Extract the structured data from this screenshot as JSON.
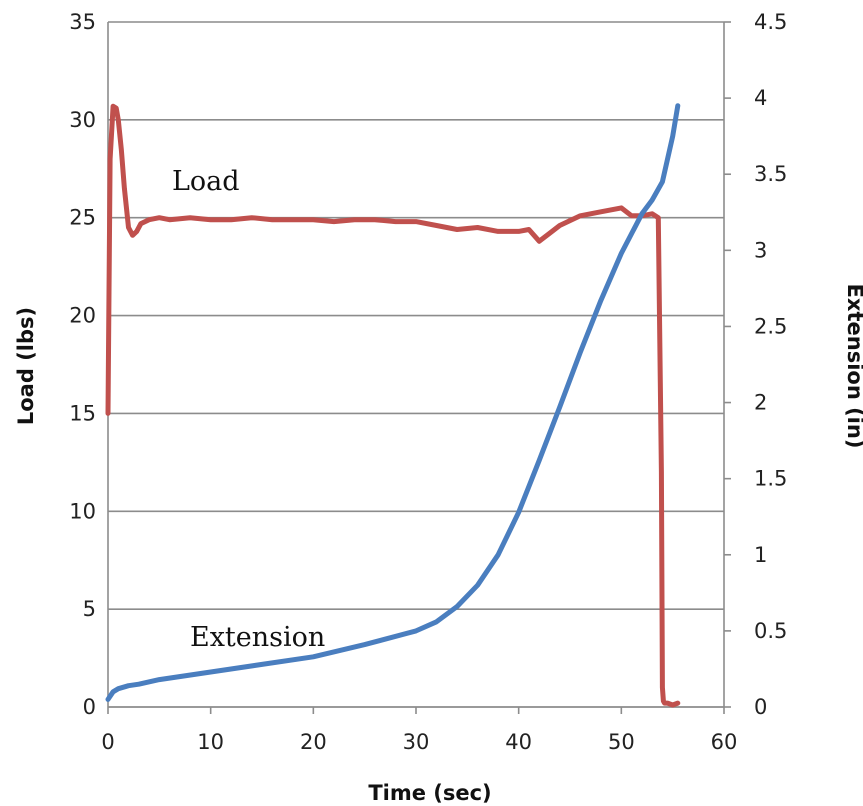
{
  "chart_data": {
    "type": "line",
    "xlabel": "Time (sec)",
    "ylabel": "Load (lbs)",
    "y2label": "Extension (in)",
    "xlim": [
      0,
      60
    ],
    "ylim": [
      0,
      35
    ],
    "y2lim": [
      0,
      4.5
    ],
    "x_ticks": [
      "0",
      "10",
      "20",
      "30",
      "40",
      "50",
      "60"
    ],
    "y_ticks": [
      "0",
      "5",
      "10",
      "15",
      "20",
      "25",
      "30",
      "35"
    ],
    "y2_ticks": [
      "0",
      "0.5",
      "1",
      "1.5",
      "2",
      "2.5",
      "3",
      "3.5",
      "4",
      "4.5"
    ],
    "grid": "horizontal",
    "series": [
      {
        "name": "Load",
        "axis": "left",
        "color": "#c0504d",
        "x": [
          0,
          0.2,
          0.5,
          0.8,
          1.0,
          1.3,
          1.6,
          2.0,
          2.4,
          2.8,
          3.2,
          4,
          5,
          6,
          8,
          10,
          12,
          14,
          16,
          18,
          20,
          22,
          24,
          26,
          28,
          30,
          32,
          34,
          36,
          38,
          40,
          41,
          42,
          43,
          44,
          46,
          48,
          50,
          51,
          52,
          53,
          53.6,
          53.9,
          54.0,
          54.1,
          54.2,
          54.5,
          55,
          55.5
        ],
        "values": [
          15,
          28,
          30.7,
          30.6,
          30.0,
          28.5,
          26.5,
          24.5,
          24.1,
          24.3,
          24.7,
          24.9,
          25.0,
          24.9,
          25.0,
          24.9,
          24.9,
          25.0,
          24.9,
          24.9,
          24.9,
          24.8,
          24.9,
          24.9,
          24.8,
          24.8,
          24.6,
          24.4,
          24.5,
          24.3,
          24.3,
          24.4,
          23.8,
          24.2,
          24.6,
          25.1,
          25.3,
          25.5,
          25.1,
          25.1,
          25.2,
          25.0,
          12.0,
          1.0,
          0.3,
          0.2,
          0.2,
          0.1,
          0.2
        ]
      },
      {
        "name": "Extension",
        "axis": "right",
        "color": "#4a7ebf",
        "x": [
          0,
          0.5,
          1,
          2,
          3,
          5,
          10,
          15,
          20,
          25,
          30,
          32,
          34,
          36,
          38,
          40,
          42,
          44,
          46,
          48,
          50,
          52,
          53,
          54,
          55,
          55.5
        ],
        "values": [
          0.05,
          0.1,
          0.12,
          0.14,
          0.15,
          0.18,
          0.23,
          0.28,
          0.33,
          0.41,
          0.5,
          0.56,
          0.66,
          0.8,
          1.0,
          1.28,
          1.62,
          1.97,
          2.33,
          2.67,
          2.98,
          3.24,
          3.33,
          3.45,
          3.75,
          3.95
        ]
      }
    ]
  }
}
